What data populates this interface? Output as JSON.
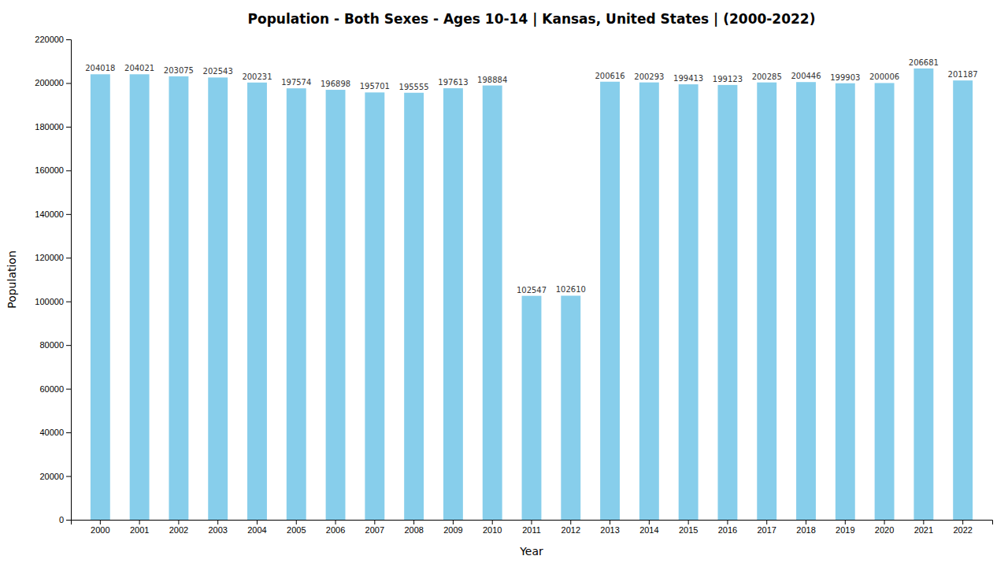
{
  "chart_data": {
    "type": "bar",
    "title": "Population - Both Sexes - Ages 10-14 | Kansas, United States |  (2000-2022)",
    "xlabel": "Year",
    "ylabel": "Population",
    "categories": [
      "2000",
      "2001",
      "2002",
      "2003",
      "2004",
      "2005",
      "2006",
      "2007",
      "2008",
      "2009",
      "2010",
      "2011",
      "2012",
      "2013",
      "2014",
      "2015",
      "2016",
      "2017",
      "2018",
      "2019",
      "2020",
      "2021",
      "2022"
    ],
    "values": [
      204018,
      204021,
      203075,
      202543,
      200231,
      197574,
      196898,
      195701,
      195555,
      197613,
      198884,
      102547,
      102610,
      200616,
      200293,
      199413,
      199123,
      200285,
      200446,
      199903,
      200006,
      206681,
      201187
    ],
    "color": "#87ceeb",
    "ylim": [
      0,
      220000
    ],
    "yticks": [
      0,
      20000,
      40000,
      60000,
      80000,
      100000,
      120000,
      140000,
      160000,
      180000,
      200000,
      220000
    ],
    "grid": false,
    "data_labels": true
  }
}
